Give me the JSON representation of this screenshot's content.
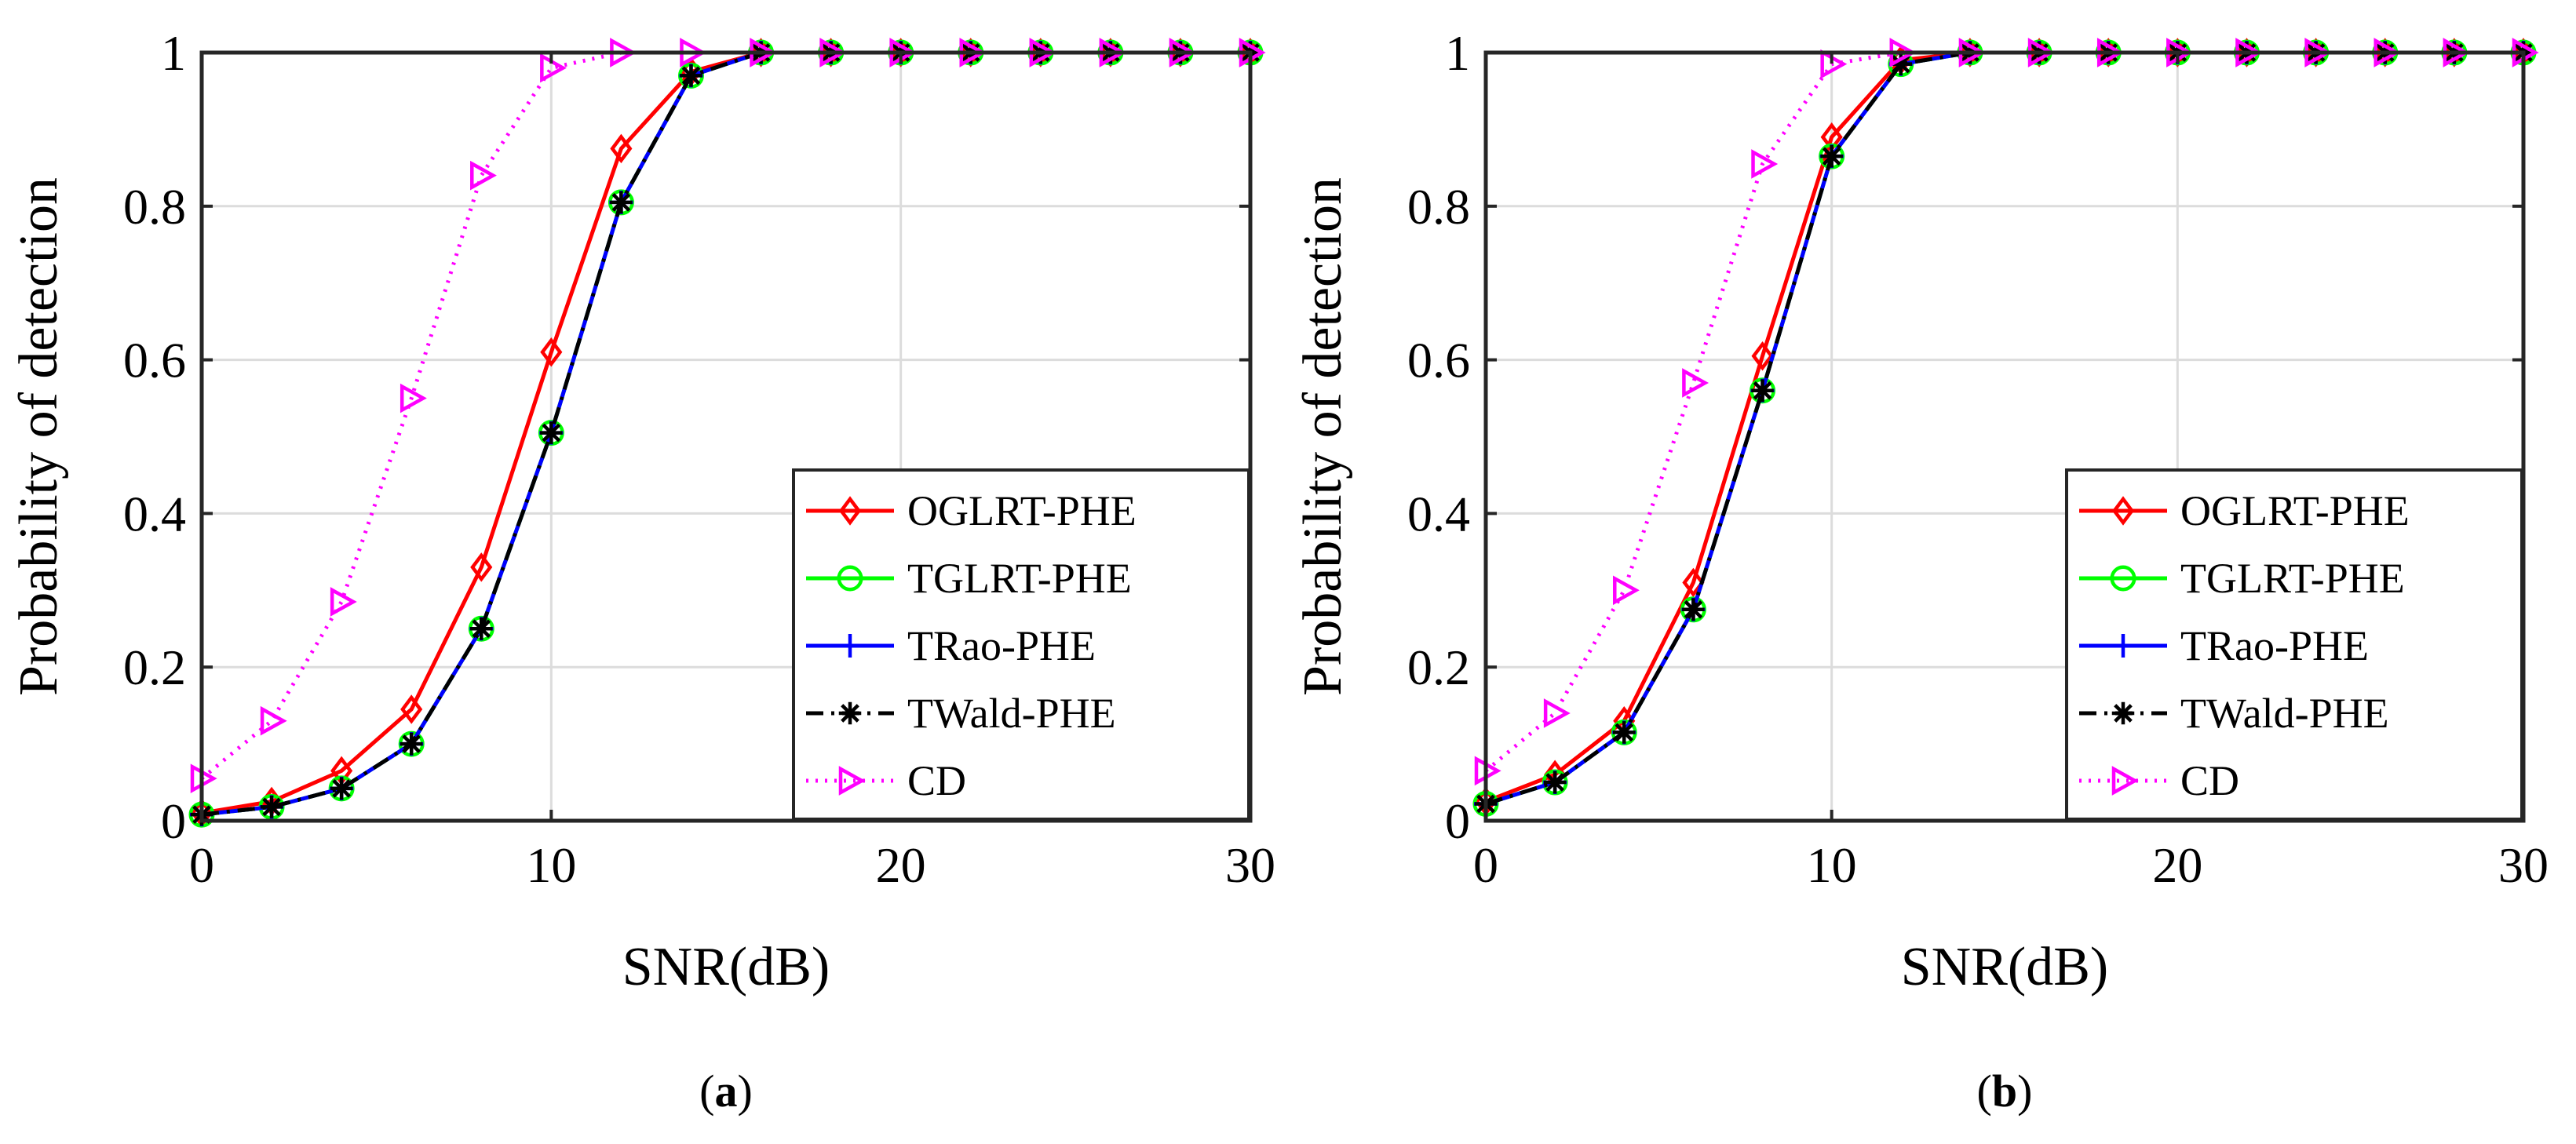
{
  "chart_data": [
    {
      "type": "line",
      "panel_label": "a",
      "xlabel": "SNR(dB)",
      "ylabel": "Probability of detection",
      "xlim": [
        0,
        30
      ],
      "ylim": [
        0,
        1
      ],
      "xticks": [
        "0",
        "10",
        "20",
        "30"
      ],
      "yticks": [
        "0",
        "0.2",
        "0.4",
        "0.6",
        "0.8",
        "1"
      ],
      "grid": true,
      "legend_position": "bottom-right",
      "x": [
        0,
        2,
        4,
        6,
        8,
        10,
        12,
        14,
        16,
        18,
        20,
        22,
        24,
        26,
        28,
        30
      ],
      "series": [
        {
          "name": "OGLRT-PHE",
          "color": "#ff0000",
          "line_style": "solid",
          "marker": "diamond",
          "values": [
            0.01,
            0.025,
            0.065,
            0.145,
            0.33,
            0.61,
            0.875,
            0.975,
            1,
            1,
            1,
            1,
            1,
            1,
            1,
            1
          ]
        },
        {
          "name": "TGLRT-PHE",
          "color": "#00ff00",
          "line_style": "solid",
          "marker": "circle",
          "values": [
            0.008,
            0.018,
            0.042,
            0.1,
            0.25,
            0.505,
            0.805,
            0.97,
            1,
            1,
            1,
            1,
            1,
            1,
            1,
            1
          ]
        },
        {
          "name": "TRao-PHE",
          "color": "#0000ff",
          "line_style": "solid",
          "marker": "plus",
          "values": [
            0.008,
            0.018,
            0.042,
            0.1,
            0.25,
            0.505,
            0.805,
            0.97,
            1,
            1,
            1,
            1,
            1,
            1,
            1,
            1
          ]
        },
        {
          "name": "TWald-PHE",
          "color": "#000000",
          "line_style": "dashdot",
          "marker": "asterisk",
          "values": [
            0.008,
            0.018,
            0.042,
            0.1,
            0.25,
            0.505,
            0.805,
            0.97,
            1,
            1,
            1,
            1,
            1,
            1,
            1,
            1
          ]
        },
        {
          "name": "CD",
          "color": "#ff00ff",
          "line_style": "dotted",
          "marker": "triangle-right",
          "values": [
            0.055,
            0.13,
            0.285,
            0.55,
            0.84,
            0.98,
            1,
            1,
            1,
            1,
            1,
            1,
            1,
            1,
            1,
            1
          ]
        }
      ]
    },
    {
      "type": "line",
      "panel_label": "b",
      "xlabel": "SNR(dB)",
      "ylabel": "Probability of detection",
      "xlim": [
        0,
        30
      ],
      "ylim": [
        0,
        1
      ],
      "xticks": [
        "0",
        "10",
        "20",
        "30"
      ],
      "yticks": [
        "0",
        "0.2",
        "0.4",
        "0.6",
        "0.8",
        "1"
      ],
      "grid": true,
      "legend_position": "bottom-right",
      "x": [
        0,
        2,
        4,
        6,
        8,
        10,
        12,
        14,
        16,
        18,
        20,
        22,
        24,
        26,
        28,
        30
      ],
      "series": [
        {
          "name": "OGLRT-PHE",
          "color": "#ff0000",
          "line_style": "solid",
          "marker": "diamond",
          "values": [
            0.025,
            0.06,
            0.13,
            0.31,
            0.605,
            0.89,
            0.99,
            1,
            1,
            1,
            1,
            1,
            1,
            1,
            1,
            1
          ]
        },
        {
          "name": "TGLRT-PHE",
          "color": "#00ff00",
          "line_style": "solid",
          "marker": "circle",
          "values": [
            0.022,
            0.05,
            0.115,
            0.275,
            0.56,
            0.865,
            0.985,
            1,
            1,
            1,
            1,
            1,
            1,
            1,
            1,
            1
          ]
        },
        {
          "name": "TRao-PHE",
          "color": "#0000ff",
          "line_style": "solid",
          "marker": "plus",
          "values": [
            0.022,
            0.05,
            0.115,
            0.275,
            0.56,
            0.865,
            0.985,
            1,
            1,
            1,
            1,
            1,
            1,
            1,
            1,
            1
          ]
        },
        {
          "name": "TWald-PHE",
          "color": "#000000",
          "line_style": "dashdot",
          "marker": "asterisk",
          "values": [
            0.022,
            0.05,
            0.115,
            0.275,
            0.56,
            0.865,
            0.985,
            1,
            1,
            1,
            1,
            1,
            1,
            1,
            1,
            1
          ]
        },
        {
          "name": "CD",
          "color": "#ff00ff",
          "line_style": "dotted",
          "marker": "triangle-right",
          "values": [
            0.065,
            0.14,
            0.3,
            0.57,
            0.855,
            0.985,
            1,
            1,
            1,
            1,
            1,
            1,
            1,
            1,
            1,
            1
          ]
        }
      ]
    }
  ]
}
